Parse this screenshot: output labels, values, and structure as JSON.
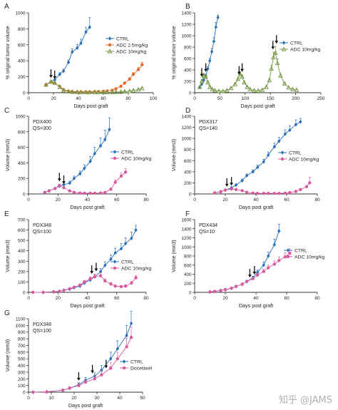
{
  "watermark": "知乎 @JAMS",
  "colors": {
    "ctrl": "#2a6fb6",
    "adc_low": "#e06a2a",
    "adc_high": "#7a9a4a",
    "adc_pink": "#d75a9f",
    "axis": "#333333"
  },
  "chart_data": [
    {
      "panel": "A",
      "type": "line",
      "xlabel": "Days post graft",
      "ylabel": "% original tumor volume",
      "xlim": [
        0,
        100
      ],
      "xticks": [
        0,
        20,
        40,
        60,
        80,
        100
      ],
      "ylim": [
        0,
        1000
      ],
      "yticks": [
        0,
        200,
        400,
        600,
        800,
        1000
      ],
      "legend": "right",
      "annotations": [
        "",
        ""
      ],
      "arrows": [
        18,
        21
      ],
      "series": [
        {
          "name": "CTRL",
          "color": "#2a6fb6",
          "marker": "diamond",
          "x": [
            14,
            18,
            21,
            25,
            28,
            32,
            35,
            39,
            42,
            46,
            49
          ],
          "y": [
            100,
            140,
            160,
            230,
            270,
            380,
            510,
            560,
            620,
            760,
            820
          ],
          "err": [
            5,
            10,
            12,
            20,
            25,
            30,
            40,
            45,
            50,
            60,
            120
          ]
        },
        {
          "name": "ADC 2.5mg/kg",
          "color": "#e06a2a",
          "marker": "circle",
          "x": [
            14,
            18,
            21,
            25,
            28,
            32,
            35,
            39,
            42,
            46,
            49,
            53,
            56,
            60,
            63,
            67,
            70,
            74,
            77,
            81,
            84,
            88,
            91
          ],
          "y": [
            100,
            130,
            120,
            80,
            40,
            20,
            15,
            12,
            12,
            12,
            12,
            14,
            15,
            18,
            22,
            30,
            50,
            80,
            120,
            170,
            230,
            290,
            350
          ],
          "err": [
            5,
            10,
            10,
            8,
            6,
            5,
            4,
            4,
            4,
            4,
            4,
            4,
            5,
            6,
            6,
            8,
            10,
            12,
            15,
            18,
            22,
            26,
            30
          ]
        },
        {
          "name": "ADC 10mg/kg",
          "color": "#7a9a4a",
          "marker": "triangle",
          "x": [
            14,
            18,
            21,
            25,
            28,
            32,
            35,
            39,
            42,
            46,
            49,
            53,
            56,
            60,
            63,
            67,
            70,
            74,
            77,
            81,
            84,
            88,
            91
          ],
          "y": [
            100,
            140,
            125,
            70,
            30,
            15,
            10,
            8,
            6,
            5,
            5,
            5,
            5,
            5,
            5,
            6,
            8,
            10,
            15,
            20,
            28,
            40,
            55
          ],
          "err": [
            5,
            10,
            10,
            8,
            5,
            4,
            3,
            3,
            2,
            2,
            2,
            2,
            2,
            2,
            2,
            2,
            3,
            3,
            4,
            5,
            6,
            8,
            10
          ]
        }
      ]
    },
    {
      "panel": "B",
      "type": "line",
      "xlabel": "Days post graft",
      "ylabel": "% original tumor volume",
      "xlim": [
        0,
        250
      ],
      "xticks": [
        0,
        50,
        100,
        150,
        200,
        250
      ],
      "ylim": [
        0,
        1400
      ],
      "yticks": [
        0,
        200,
        400,
        600,
        800,
        1000,
        1200,
        1400
      ],
      "legend": "right",
      "annotations": [
        "",
        ""
      ],
      "arrows": [
        14,
        22,
        88,
        94,
        155,
        162
      ],
      "series": [
        {
          "name": "CTRL",
          "color": "#2a6fb6",
          "marker": "diamond",
          "x": [
            10,
            14,
            18,
            22,
            26,
            30,
            34,
            38,
            42,
            46
          ],
          "y": [
            100,
            150,
            220,
            300,
            420,
            560,
            720,
            900,
            1150,
            1320
          ],
          "err": [
            5,
            10,
            20,
            25,
            35,
            45,
            55,
            65,
            80,
            40
          ]
        },
        {
          "name": "ADC 10mg/kg",
          "color": "#7a9a4a",
          "marker": "triangle",
          "x": [
            10,
            14,
            18,
            22,
            26,
            30,
            35,
            40,
            48,
            56,
            64,
            72,
            80,
            86,
            90,
            94,
            98,
            104,
            110,
            118,
            126,
            134,
            142,
            148,
            152,
            156,
            160,
            164,
            170,
            178,
            186,
            194,
            202
          ],
          "y": [
            100,
            200,
            300,
            280,
            180,
            100,
            60,
            40,
            30,
            25,
            40,
            80,
            150,
            240,
            330,
            280,
            180,
            100,
            60,
            40,
            35,
            50,
            100,
            220,
            420,
            620,
            700,
            520,
            300,
            160,
            90,
            60,
            50
          ],
          "err": [
            5,
            30,
            40,
            35,
            25,
            15,
            10,
            6,
            5,
            5,
            6,
            10,
            15,
            25,
            40,
            35,
            20,
            12,
            8,
            6,
            6,
            8,
            12,
            30,
            60,
            90,
            110,
            80,
            40,
            20,
            12,
            8,
            8
          ]
        }
      ]
    },
    {
      "panel": "C",
      "type": "line",
      "xlabel": "Days post graft",
      "ylabel": "Volume (mm3)",
      "xlim": [
        0,
        80
      ],
      "xticks": [
        0,
        20,
        40,
        60,
        80
      ],
      "ylim": [
        0,
        1000
      ],
      "yticks": [
        0,
        200,
        400,
        600,
        800,
        1000
      ],
      "legend": "right",
      "annotations": [
        "PDX400",
        "QS=300"
      ],
      "arrows": [
        21,
        24
      ],
      "series": [
        {
          "name": "CTRL",
          "color": "#2a6fb6",
          "marker": "diamond",
          "x": [
            11,
            14,
            18,
            21,
            24,
            28,
            31,
            35,
            38,
            42,
            45,
            49,
            52,
            55
          ],
          "y": [
            20,
            40,
            70,
            100,
            120,
            140,
            200,
            260,
            330,
            420,
            520,
            620,
            700,
            830
          ],
          "err": [
            3,
            5,
            10,
            15,
            20,
            25,
            30,
            35,
            45,
            60,
            80,
            100,
            120,
            150
          ]
        },
        {
          "name": "ADC 10mg/kg",
          "color": "#d75a9f",
          "marker": "circle",
          "x": [
            11,
            14,
            18,
            21,
            24,
            28,
            31,
            35,
            38,
            42,
            45,
            49,
            52,
            56,
            59,
            63,
            66
          ],
          "y": [
            20,
            40,
            70,
            110,
            80,
            40,
            20,
            12,
            10,
            10,
            10,
            12,
            20,
            60,
            150,
            230,
            280
          ],
          "err": [
            3,
            5,
            10,
            15,
            12,
            8,
            4,
            3,
            3,
            3,
            3,
            4,
            6,
            15,
            30,
            40,
            45
          ]
        }
      ]
    },
    {
      "panel": "D",
      "type": "line",
      "xlabel": "Days post graft",
      "ylabel": "Volume (mm3)",
      "xlim": [
        0,
        80
      ],
      "xticks": [
        0,
        20,
        40,
        60,
        80
      ],
      "ylim": [
        0,
        1400
      ],
      "yticks": [
        0,
        200,
        400,
        600,
        800,
        1000,
        1200,
        1400
      ],
      "legend": "right",
      "annotations": [
        "PDX317",
        "QS=140"
      ],
      "arrows": [
        21,
        24
      ],
      "series": [
        {
          "name": "CTRL",
          "color": "#2a6fb6",
          "marker": "diamond",
          "x": [
            13,
            17,
            20,
            24,
            27,
            31,
            34,
            38,
            41,
            45,
            48,
            52,
            55,
            59,
            62,
            66,
            69
          ],
          "y": [
            20,
            40,
            70,
            110,
            160,
            240,
            330,
            400,
            480,
            580,
            700,
            850,
            950,
            1080,
            1150,
            1250,
            1300
          ],
          "err": [
            3,
            5,
            8,
            12,
            18,
            24,
            30,
            35,
            40,
            45,
            55,
            65,
            70,
            75,
            80,
            85,
            60
          ]
        },
        {
          "name": "ADC 10mg/kg",
          "color": "#d75a9f",
          "marker": "circle",
          "x": [
            13,
            17,
            20,
            24,
            27,
            31,
            34,
            38,
            41,
            45,
            48,
            52,
            55,
            59,
            62,
            66,
            69,
            73,
            75
          ],
          "y": [
            20,
            40,
            70,
            90,
            80,
            60,
            30,
            15,
            10,
            10,
            10,
            10,
            10,
            15,
            25,
            45,
            80,
            130,
            200
          ],
          "err": [
            3,
            5,
            8,
            10,
            8,
            6,
            4,
            3,
            2,
            2,
            2,
            2,
            2,
            3,
            5,
            8,
            15,
            25,
            100
          ]
        }
      ]
    },
    {
      "panel": "E",
      "type": "line",
      "xlabel": "Days post graft",
      "ylabel": "Volume (mm3)",
      "xlim": [
        0,
        80
      ],
      "xticks": [
        0,
        20,
        40,
        60,
        80
      ],
      "ylim": [
        0,
        700
      ],
      "yticks": [
        0,
        100,
        200,
        300,
        400,
        500,
        600,
        700
      ],
      "legend": "right",
      "annotations": [
        "PDX348",
        "QS=100"
      ],
      "arrows": [
        43,
        46
      ],
      "series": [
        {
          "name": "CTRL",
          "color": "#2a6fb6",
          "marker": "diamond",
          "x": [
            3,
            10,
            17,
            21,
            24,
            28,
            31,
            35,
            38,
            42,
            45,
            49,
            52,
            56,
            59,
            63,
            66,
            70,
            73
          ],
          "y": [
            0,
            0,
            5,
            10,
            20,
            30,
            45,
            60,
            90,
            120,
            150,
            200,
            260,
            320,
            380,
            420,
            470,
            520,
            600
          ],
          "err": [
            0,
            0,
            2,
            3,
            5,
            6,
            8,
            10,
            15,
            20,
            25,
            30,
            35,
            40,
            45,
            50,
            55,
            60,
            45
          ]
        },
        {
          "name": "ADC 10mg/kg",
          "color": "#d75a9f",
          "marker": "circle",
          "x": [
            3,
            10,
            17,
            21,
            24,
            28,
            31,
            35,
            38,
            42,
            45,
            49,
            52,
            56,
            59,
            63,
            66,
            70,
            73
          ],
          "y": [
            0,
            0,
            5,
            10,
            20,
            35,
            50,
            70,
            100,
            130,
            150,
            160,
            110,
            80,
            60,
            55,
            60,
            90,
            140
          ],
          "err": [
            0,
            0,
            2,
            3,
            5,
            7,
            10,
            12,
            15,
            20,
            25,
            30,
            20,
            15,
            12,
            10,
            12,
            15,
            20
          ]
        }
      ]
    },
    {
      "panel": "F",
      "type": "line",
      "xlabel": "Days post graft",
      "ylabel": "Volume (mm3)",
      "xlim": [
        0,
        80
      ],
      "xticks": [
        0,
        20,
        40,
        60,
        80
      ],
      "ylim": [
        0,
        1600
      ],
      "yticks": [
        0,
        200,
        400,
        600,
        800,
        1000,
        1200,
        1400,
        1600
      ],
      "legend": "right",
      "annotations": [
        "PDX434",
        "QS=10"
      ],
      "arrows": [
        36,
        39
      ],
      "series": [
        {
          "name": "CTRL",
          "color": "#2a6fb6",
          "marker": "diamond",
          "x": [
            10,
            13,
            17,
            20,
            24,
            27,
            31,
            34,
            38,
            41,
            45,
            48,
            52,
            55
          ],
          "y": [
            10,
            20,
            40,
            60,
            90,
            130,
            180,
            240,
            320,
            440,
            600,
            800,
            1050,
            1350
          ],
          "err": [
            2,
            3,
            5,
            8,
            12,
            15,
            20,
            25,
            35,
            50,
            70,
            90,
            120,
            150
          ]
        },
        {
          "name": "ADC 10mg/kg",
          "color": "#d75a9f",
          "marker": "circle",
          "x": [
            10,
            13,
            17,
            20,
            24,
            27,
            31,
            34,
            38,
            41,
            45,
            48,
            52,
            55,
            59,
            62
          ],
          "y": [
            10,
            20,
            40,
            60,
            90,
            130,
            180,
            240,
            300,
            380,
            460,
            540,
            620,
            700,
            780,
            860
          ],
          "err": [
            2,
            3,
            5,
            8,
            12,
            15,
            20,
            25,
            30,
            40,
            50,
            60,
            70,
            80,
            90,
            100
          ]
        }
      ]
    },
    {
      "panel": "G",
      "type": "line",
      "xlabel": "Days post graft",
      "ylabel": "Volume (mm3)",
      "xlim": [
        0,
        50
      ],
      "xticks": [
        0,
        10,
        20,
        30,
        40,
        50
      ],
      "ylim": [
        0,
        1100
      ],
      "yticks": [
        0,
        100,
        200,
        300,
        400,
        500,
        600,
        700,
        800,
        900,
        1000,
        1100
      ],
      "legend": "right",
      "annotations": [
        "PDX348",
        "QS=100"
      ],
      "arrows": [
        22,
        28,
        34
      ],
      "series": [
        {
          "name": "CTRL",
          "color": "#2a6fb6",
          "marker": "diamond",
          "x": [
            2,
            8,
            15,
            18,
            22,
            25,
            29,
            32,
            36,
            39,
            43,
            45
          ],
          "y": [
            0,
            5,
            30,
            60,
            110,
            180,
            240,
            330,
            500,
            650,
            850,
            1030
          ],
          "err": [
            0,
            2,
            10,
            20,
            30,
            40,
            50,
            70,
            100,
            120,
            150,
            180
          ]
        },
        {
          "name": "Docetaxel",
          "color": "#d75a9f",
          "marker": "circle",
          "x": [
            2,
            8,
            15,
            18,
            22,
            25,
            29,
            32,
            36,
            39,
            43,
            45
          ],
          "y": [
            0,
            5,
            30,
            60,
            100,
            150,
            200,
            260,
            360,
            500,
            680,
            820
          ],
          "err": [
            0,
            2,
            10,
            20,
            30,
            35,
            40,
            55,
            80,
            100,
            130,
            160
          ]
        }
      ]
    }
  ]
}
